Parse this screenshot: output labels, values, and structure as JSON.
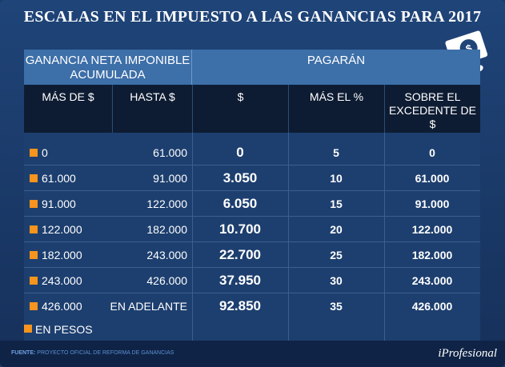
{
  "title": "ESCALAS EN EL IMPUESTO A LAS GANANCIAS PARA 2017",
  "header": {
    "left_group": "GANANCIA NETA IMPONIBLE ACUMULADA",
    "right_group": "PAGARÁN",
    "col_from": "MÁS DE $",
    "col_to": "HASTA $",
    "col_pay": "$",
    "col_pct": "MÁS EL %",
    "col_excess": "SOBRE EL EXCEDENTE DE $"
  },
  "chart_data": {
    "type": "table",
    "title": "ESCALAS EN EL IMPUESTO A LAS GANANCIAS PARA 2017",
    "columns": [
      "MÁS DE $",
      "HASTA $",
      "$",
      "MÁS EL %",
      "SOBRE EL EXCEDENTE DE $"
    ],
    "rows": [
      {
        "from": "0",
        "to": "61.000",
        "pay": "0",
        "pct": "5",
        "excess": "0"
      },
      {
        "from": "61.000",
        "to": "91.000",
        "pay": "3.050",
        "pct": "10",
        "excess": "61.000"
      },
      {
        "from": "91.000",
        "to": "122.000",
        "pay": "6.050",
        "pct": "15",
        "excess": "91.000"
      },
      {
        "from": "122.000",
        "to": "182.000",
        "pay": "10.700",
        "pct": "20",
        "excess": "122.000"
      },
      {
        "from": "182.000",
        "to": "243.000",
        "pay": "22.700",
        "pct": "25",
        "excess": "182.000"
      },
      {
        "from": "243.000",
        "to": "426.000",
        "pay": "37.950",
        "pct": "30",
        "excess": "243.000"
      },
      {
        "from": "426.000",
        "to": "EN ADELANTE",
        "pay": "92.850",
        "pct": "35",
        "excess": "426.000"
      }
    ]
  },
  "legend": "EN PESOS",
  "footer": {
    "source_label": "FUENTE:",
    "source_text": "PROYECTO OFICIAL DE REFORMA DE GANANCIAS",
    "brand": "iProfesional"
  },
  "colors": {
    "background": "#1c3a66",
    "header_blue": "#3d6fa8",
    "header_dark": "#0e1c33",
    "bullet": "#f7941d"
  },
  "icons": [
    "money-hand-icon"
  ]
}
